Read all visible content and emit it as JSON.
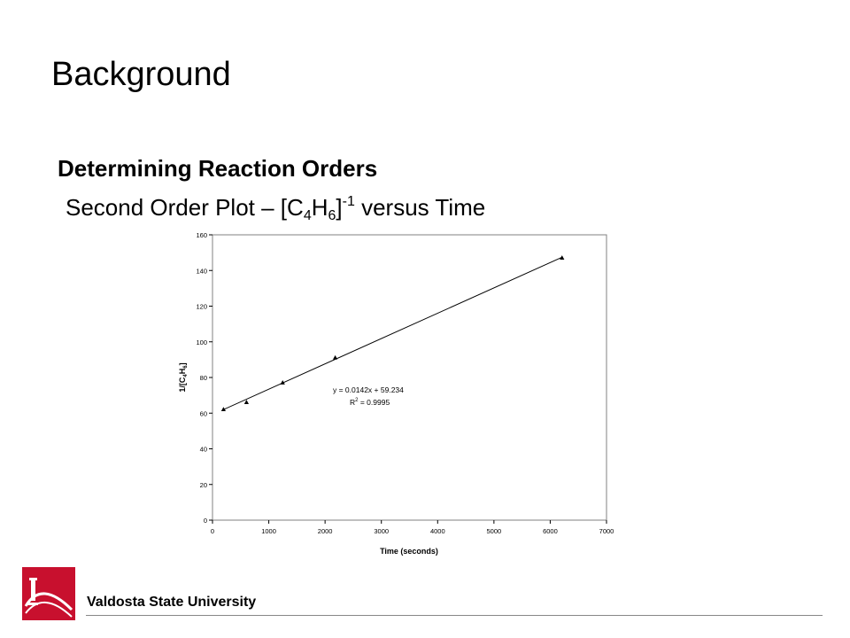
{
  "slide": {
    "title": "Background",
    "heading": "Determining Reaction Orders",
    "subheading": {
      "prefix": "Second Order Plot – [C",
      "sub1": "4",
      "mid": "H",
      "sub2": "6",
      "close": "]",
      "sup": "-1",
      "suffix": " versus Time"
    }
  },
  "footer": {
    "university": "Valdosta State University",
    "logo_icon": "vsu-logo-icon",
    "brand_color": "#c8102e"
  },
  "chart_data": {
    "type": "scatter",
    "title": "",
    "xlabel": "Time (seconds)",
    "ylabel_parts": [
      "1/[C",
      "4",
      "H",
      "6",
      "]"
    ],
    "xlim": [
      0,
      7000
    ],
    "ylim": [
      0,
      160
    ],
    "x_ticks": [
      0,
      1000,
      2000,
      3000,
      4000,
      5000,
      6000,
      7000
    ],
    "y_ticks": [
      0,
      20,
      40,
      60,
      80,
      100,
      120,
      140,
      160
    ],
    "grid": false,
    "marker": "triangle",
    "x": [
      195,
      604,
      1246,
      2180,
      6210
    ],
    "y": [
      62,
      66,
      77,
      91,
      147
    ],
    "trendline": {
      "slope": 0.0142,
      "intercept": 59.234,
      "x_range": [
        195,
        6210
      ],
      "equation": "y = 0.0142x + 59.234",
      "r2_prefix": "R",
      "r2_sup": "2",
      "r2_suffix": " = 0.9995"
    }
  }
}
